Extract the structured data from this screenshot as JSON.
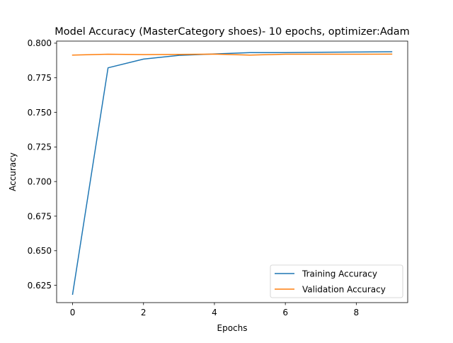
{
  "chart_data": {
    "type": "line",
    "title": "Model Accuracy (MasterCategory shoes)- 10 epochs, optimizer:Adam",
    "xlabel": "Epochs",
    "ylabel": "Accuracy",
    "xlim": [
      -0.45,
      9.45
    ],
    "ylim": [
      0.6125,
      0.8015
    ],
    "xticks": [
      0,
      2,
      4,
      6,
      8
    ],
    "xtick_labels": [
      "0",
      "2",
      "4",
      "6",
      "8"
    ],
    "yticks": [
      0.625,
      0.65,
      0.675,
      0.7,
      0.725,
      0.75,
      0.775,
      0.8
    ],
    "ytick_labels": [
      "0.625",
      "0.650",
      "0.675",
      "0.700",
      "0.725",
      "0.750",
      "0.775",
      "0.800"
    ],
    "x": [
      0,
      1,
      2,
      3,
      4,
      5,
      6,
      7,
      8,
      9
    ],
    "series": [
      {
        "name": "Training Accuracy",
        "color": "#1f77b4",
        "values": [
          0.6185,
          0.7822,
          0.7885,
          0.7912,
          0.7922,
          0.7932,
          0.7932,
          0.7934,
          0.7936,
          0.7938
        ]
      },
      {
        "name": "Validation Accuracy",
        "color": "#ff7f0e",
        "values": [
          0.7914,
          0.792,
          0.7918,
          0.7919,
          0.7921,
          0.7914,
          0.792,
          0.792,
          0.792,
          0.7921
        ]
      }
    ],
    "grid": false,
    "legend_position": "lower-right"
  }
}
